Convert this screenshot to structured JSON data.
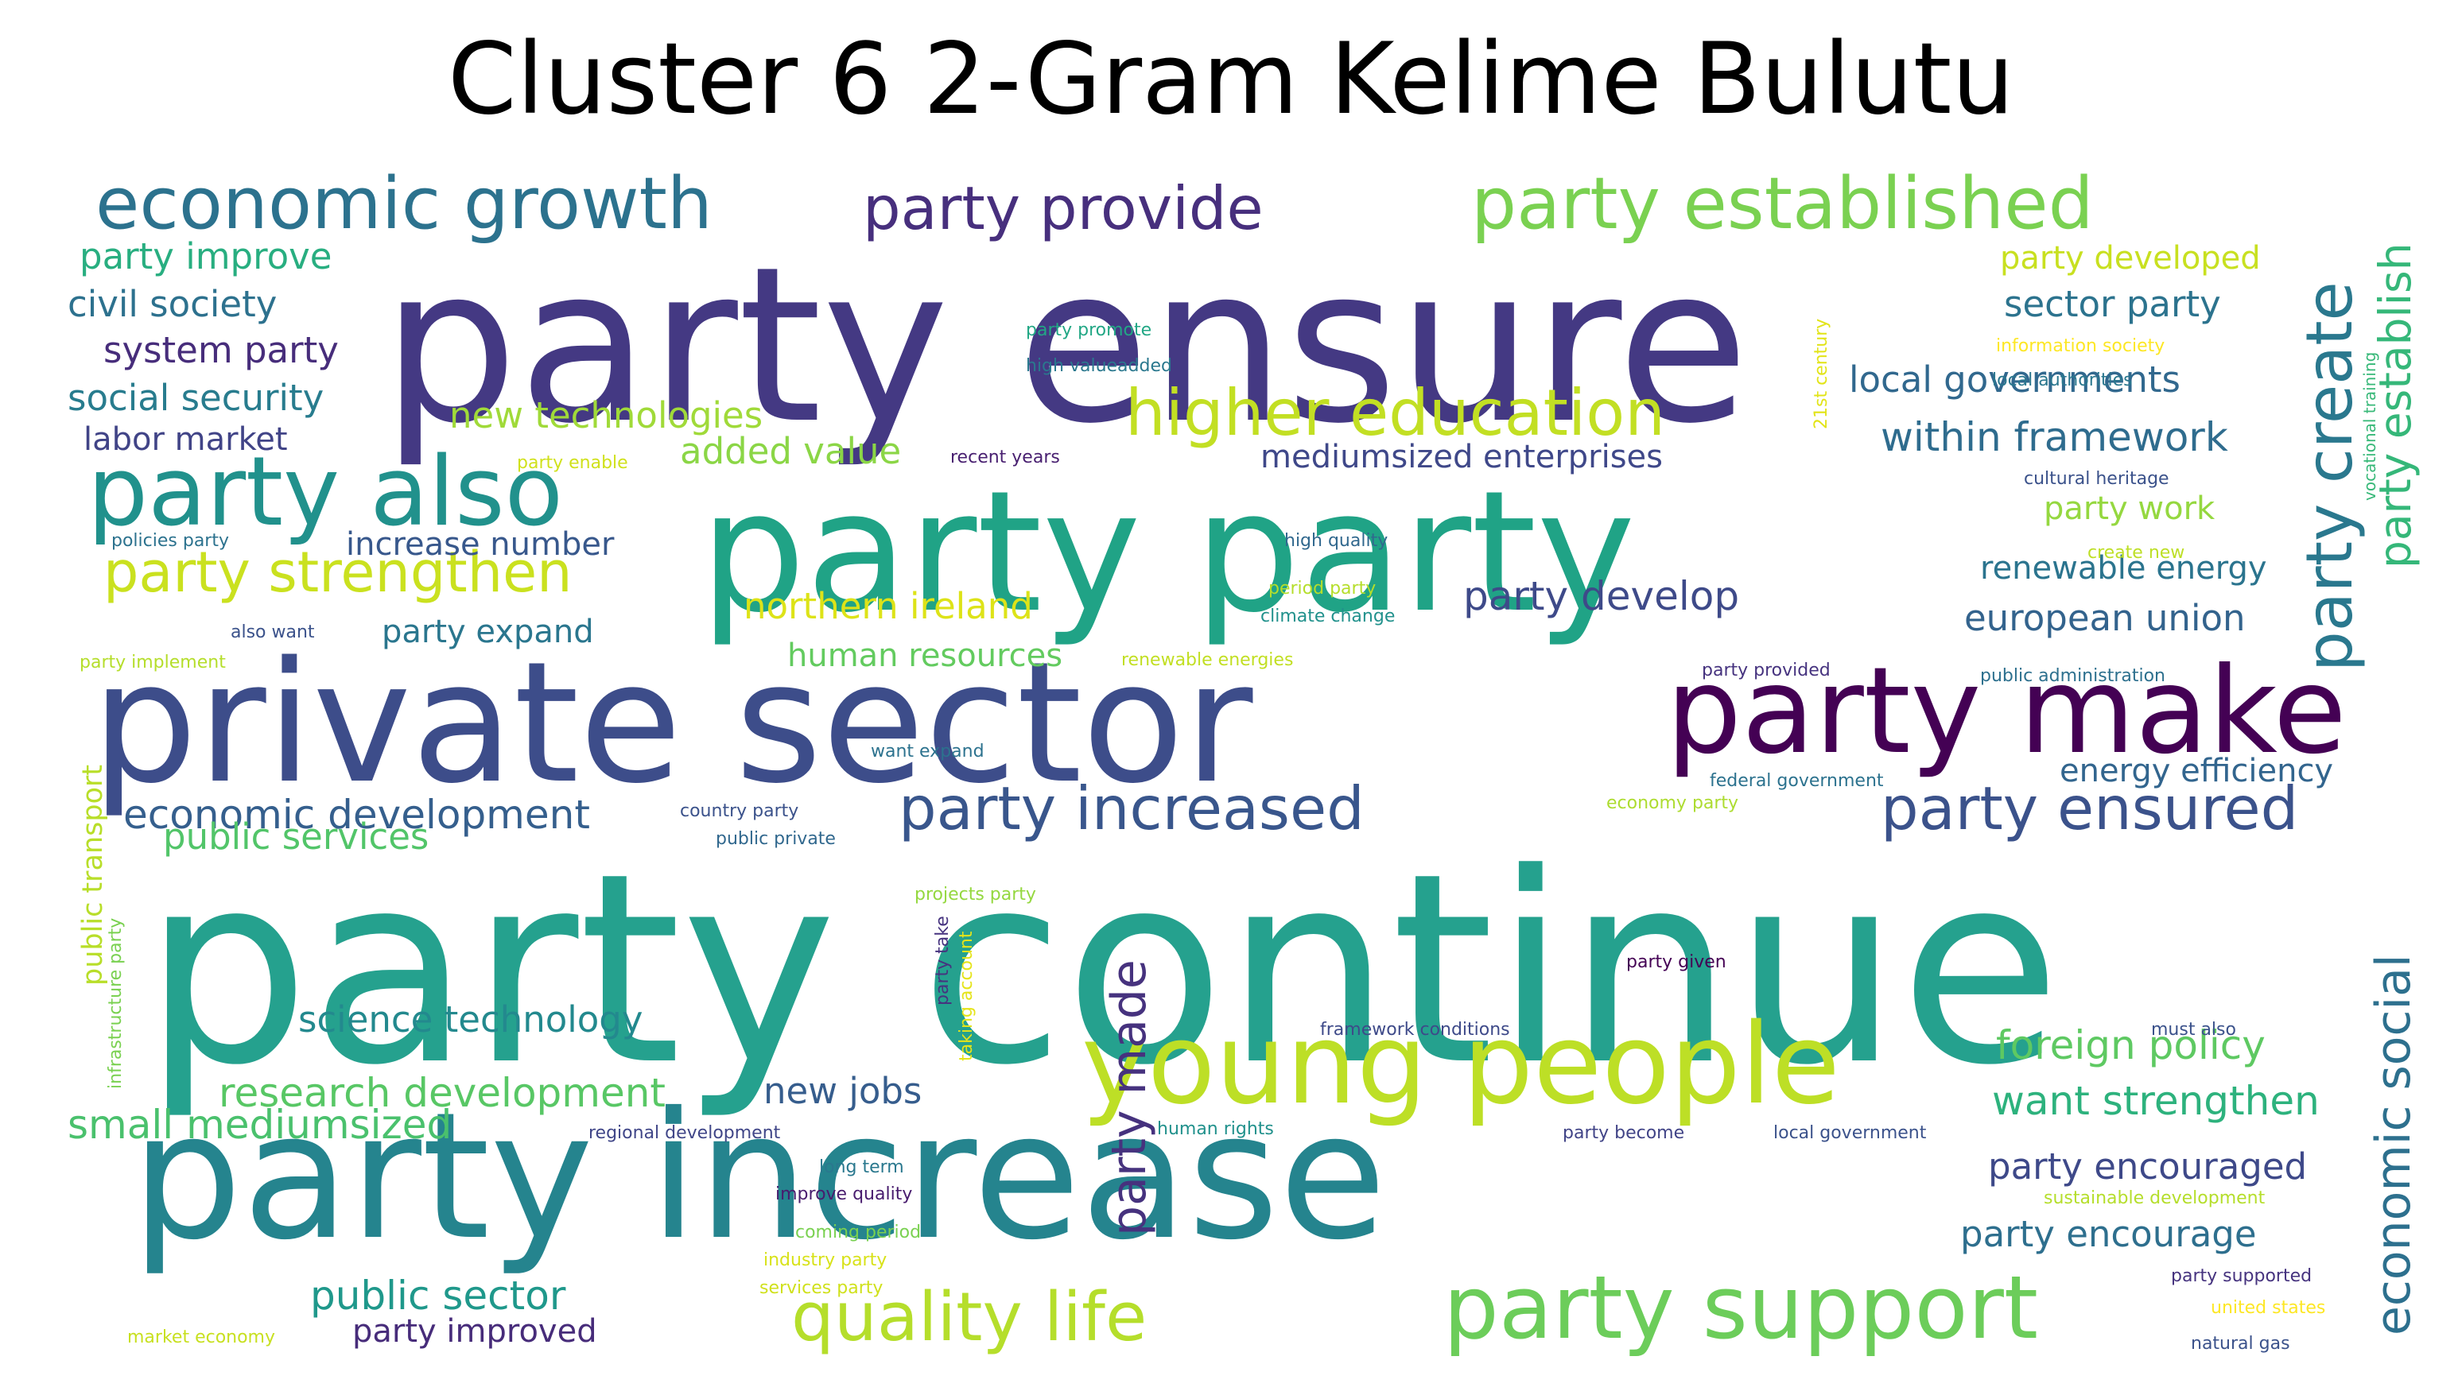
{
  "title": "Cluster 6 2-Gram Kelime Bulutu",
  "words": [
    {
      "text": "party continue",
      "color": "#25a18e"
    },
    {
      "text": "party ensure",
      "color": "#443983"
    },
    {
      "text": "private sector",
      "color": "#3d4d8a"
    },
    {
      "text": "party increase",
      "color": "#25848e"
    },
    {
      "text": "party party",
      "color": "#20a386"
    },
    {
      "text": "young people",
      "color": "#bddf26"
    },
    {
      "text": "party make",
      "color": "#440154"
    },
    {
      "text": "party support",
      "color": "#6ccd5a"
    },
    {
      "text": "party also",
      "color": "#21918c"
    },
    {
      "text": "economic growth",
      "color": "#2c728e"
    },
    {
      "text": "party established",
      "color": "#7ad151"
    },
    {
      "text": "quality life",
      "color": "#b5de2b"
    },
    {
      "text": "party create",
      "color": "#2a788e"
    },
    {
      "text": "higher education",
      "color": "#c2df23"
    },
    {
      "text": "party provide",
      "color": "#472f7d"
    },
    {
      "text": "party increased",
      "color": "#39568c"
    },
    {
      "text": "party ensured",
      "color": "#3b528b"
    },
    {
      "text": "party strengthen",
      "color": "#cae11f"
    },
    {
      "text": "economic social",
      "color": "#2d708e"
    },
    {
      "text": "party establish",
      "color": "#35b779"
    },
    {
      "text": "party made",
      "color": "#46327e"
    },
    {
      "text": "within framework",
      "color": "#2f6c8e"
    },
    {
      "text": "party develop",
      "color": "#3e4a89"
    },
    {
      "text": "economic development",
      "color": "#355f8d"
    },
    {
      "text": "research development",
      "color": "#58c765"
    },
    {
      "text": "foreign policy",
      "color": "#5ec962"
    },
    {
      "text": "want strengthen",
      "color": "#2db27d"
    },
    {
      "text": "small mediumsized",
      "color": "#4ac16d"
    },
    {
      "text": "public sector",
      "color": "#1f988b"
    },
    {
      "text": "party encouraged",
      "color": "#3e4989"
    },
    {
      "text": "party encourage",
      "color": "#2e6f8e"
    },
    {
      "text": "new technologies",
      "color": "#a0da39"
    },
    {
      "text": "local governments",
      "color": "#31688e"
    },
    {
      "text": "northern ireland",
      "color": "#dde318"
    },
    {
      "text": "science technology",
      "color": "#23898e"
    },
    {
      "text": "public services",
      "color": "#52c569"
    },
    {
      "text": "new jobs",
      "color": "#365d8d"
    },
    {
      "text": "european union",
      "color": "#33638d"
    },
    {
      "text": "added value",
      "color": "#8bd646"
    },
    {
      "text": "party improve",
      "color": "#28ae80"
    },
    {
      "text": "civil society",
      "color": "#2d718e"
    },
    {
      "text": "system party",
      "color": "#472d7b"
    },
    {
      "text": "social security",
      "color": "#287c8e"
    },
    {
      "text": "labor market",
      "color": "#414487"
    },
    {
      "text": "party developed",
      "color": "#c8e020"
    },
    {
      "text": "sector party",
      "color": "#2c738e"
    },
    {
      "text": "party expand",
      "color": "#2a768e"
    },
    {
      "text": "party work",
      "color": "#95d840"
    },
    {
      "text": "renewable energy",
      "color": "#2b748e"
    },
    {
      "text": "mediumsized enterprises",
      "color": "#3f4889"
    },
    {
      "text": "human resources",
      "color": "#63cb5f"
    },
    {
      "text": "energy efficiency",
      "color": "#32658e"
    },
    {
      "text": "party improved",
      "color": "#472c7a"
    },
    {
      "text": "increase number",
      "color": "#38588c"
    },
    {
      "text": "public transport",
      "color": "#b8de29"
    },
    {
      "text": "party promote",
      "color": "#22a785"
    },
    {
      "text": "high valueadded",
      "color": "#2a788e"
    },
    {
      "text": "information society",
      "color": "#fde725"
    },
    {
      "text": "local authorities",
      "color": "#2a778e"
    },
    {
      "text": "vocational training",
      "color": "#37b878"
    },
    {
      "text": "21st century",
      "color": "#e2e418"
    },
    {
      "text": "party enable",
      "color": "#d0e11c"
    },
    {
      "text": "recent years",
      "color": "#481f70"
    },
    {
      "text": "cultural heritage",
      "color": "#3b528b"
    },
    {
      "text": "policies party",
      "color": "#2c728e"
    },
    {
      "text": "high quality",
      "color": "#31688e"
    },
    {
      "text": "create new",
      "color": "#bddf26"
    },
    {
      "text": "period party",
      "color": "#b5de2b"
    },
    {
      "text": "climate change",
      "color": "#21918c"
    },
    {
      "text": "also want",
      "color": "#3b528b"
    },
    {
      "text": "party implement",
      "color": "#b5de2b"
    },
    {
      "text": "renewable energies",
      "color": "#c2df23"
    },
    {
      "text": "party provided",
      "color": "#46337f"
    },
    {
      "text": "public administration",
      "color": "#2d708e"
    },
    {
      "text": "want expand",
      "color": "#2c728e"
    },
    {
      "text": "country party",
      "color": "#3b528b"
    },
    {
      "text": "public private",
      "color": "#31688e"
    },
    {
      "text": "federal government",
      "color": "#2c728e"
    },
    {
      "text": "economy party",
      "color": "#addc30"
    },
    {
      "text": "projects party",
      "color": "#95d840"
    },
    {
      "text": "infrastructure party",
      "color": "#7ad151"
    },
    {
      "text": "party take",
      "color": "#46337f"
    },
    {
      "text": "taking account",
      "color": "#e5e419"
    },
    {
      "text": "party given",
      "color": "#440154"
    },
    {
      "text": "framework conditions",
      "color": "#3e4a89"
    },
    {
      "text": "must also",
      "color": "#3b528b"
    },
    {
      "text": "regional development",
      "color": "#404688"
    },
    {
      "text": "human rights",
      "color": "#21918c"
    },
    {
      "text": "party become",
      "color": "#414487"
    },
    {
      "text": "local government",
      "color": "#3b528b"
    },
    {
      "text": "long term",
      "color": "#2a788e"
    },
    {
      "text": "improve quality",
      "color": "#481c6e"
    },
    {
      "text": "sustainable development",
      "color": "#b5de2b"
    },
    {
      "text": "coming period",
      "color": "#7ad151"
    },
    {
      "text": "industry party",
      "color": "#d8e219"
    },
    {
      "text": "services party",
      "color": "#d0e11c"
    },
    {
      "text": "party supported",
      "color": "#46337f"
    },
    {
      "text": "united states",
      "color": "#fde725"
    },
    {
      "text": "market economy",
      "color": "#c8e020"
    },
    {
      "text": "natural gas",
      "color": "#3b528b"
    }
  ]
}
